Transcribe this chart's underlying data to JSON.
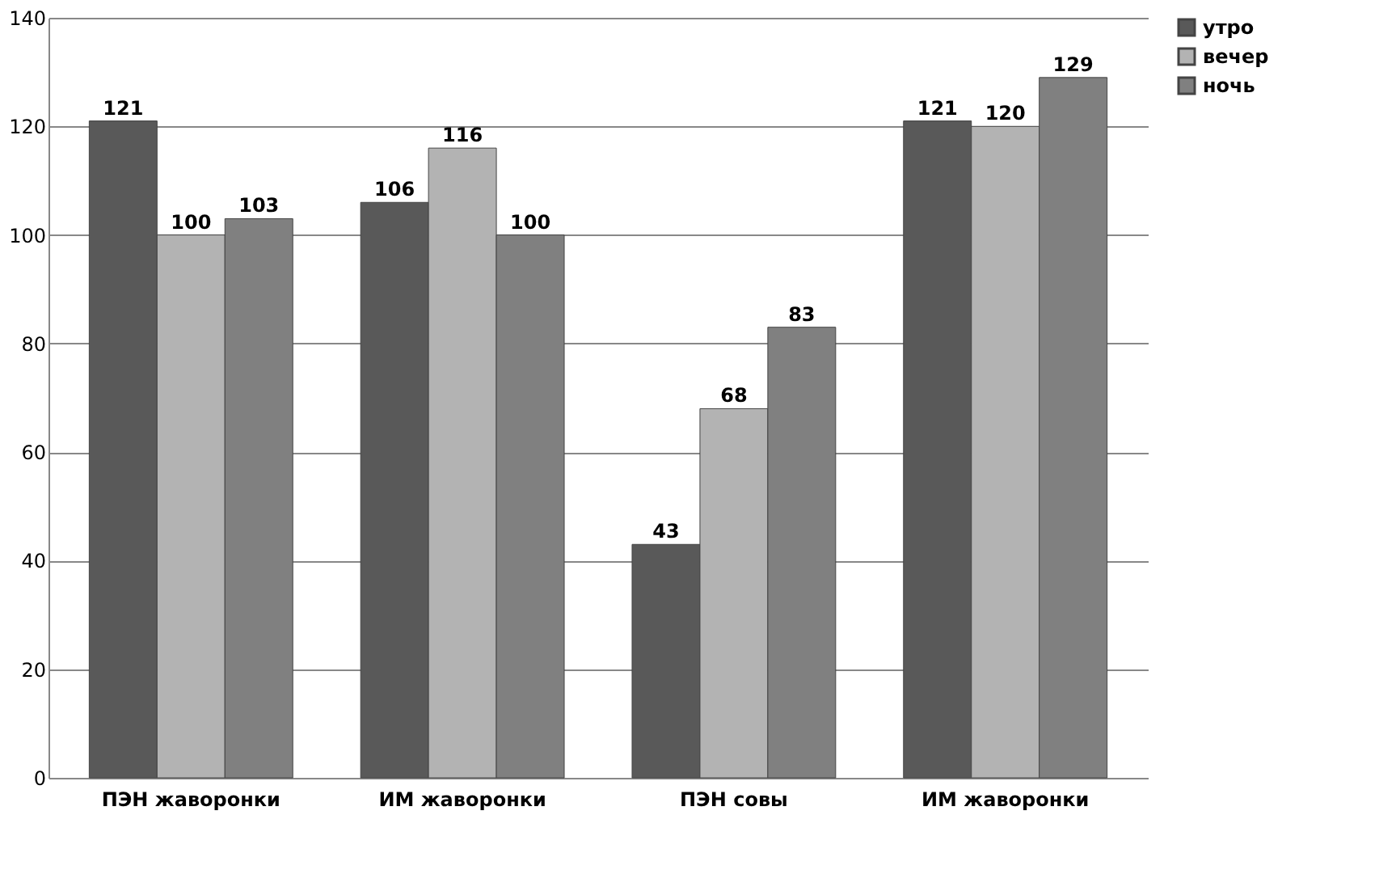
{
  "chart_data": {
    "type": "bar",
    "categories": [
      "ПЭН жаворонки",
      "ИМ жаворонки",
      "ПЭН совы",
      "ИМ жаворонки"
    ],
    "series": [
      {
        "name": "утро",
        "color": "#595959",
        "values": [
          121,
          106,
          43,
          121
        ]
      },
      {
        "name": "вечер",
        "color": "#b3b3b3",
        "values": [
          100,
          116,
          68,
          120
        ]
      },
      {
        "name": "ночь",
        "color": "#808080",
        "values": [
          103,
          100,
          83,
          129
        ]
      }
    ],
    "ylim": [
      0,
      140
    ],
    "yticks": [
      0,
      20,
      40,
      60,
      80,
      100,
      120,
      140
    ],
    "grid": "y",
    "legend": "right",
    "data_labels": true
  }
}
